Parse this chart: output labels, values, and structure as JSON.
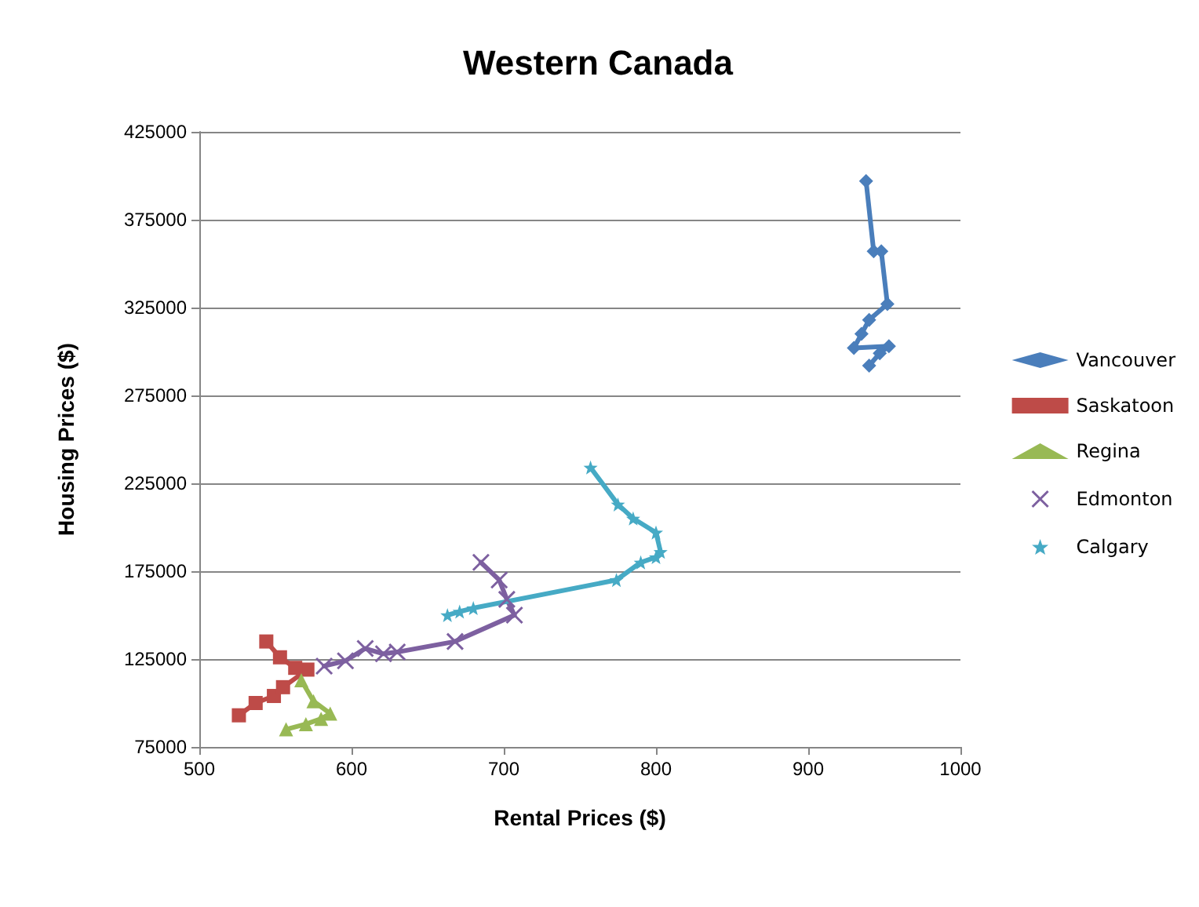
{
  "chart_data": {
    "type": "line",
    "title": "Western Canada",
    "xlabel": "Rental Prices ($)",
    "ylabel": "Housing Prices ($)",
    "xlim": [
      500,
      1000
    ],
    "xticks": [
      500,
      600,
      700,
      800,
      900,
      1000
    ],
    "ylim": [
      75000,
      425000
    ],
    "yticks": [
      75000,
      125000,
      175000,
      225000,
      275000,
      325000,
      375000,
      425000
    ],
    "grid": "y",
    "legend": "right",
    "series": [
      {
        "name": "Vancouver",
        "color": "#4a7ebb",
        "marker": "diamond",
        "x": [
          938,
          943,
          948,
          952,
          940,
          935,
          930,
          953,
          947,
          940
        ],
        "values": [
          397000,
          357000,
          357000,
          327000,
          318000,
          310000,
          302000,
          303000,
          299000,
          292000
        ]
      },
      {
        "name": "Saskatoon",
        "color": "#be4b48",
        "marker": "square",
        "x": [
          526,
          537,
          549,
          555,
          571,
          563,
          553,
          544
        ],
        "values": [
          93000,
          100000,
          104000,
          109000,
          119000,
          120000,
          126000,
          135000
        ]
      },
      {
        "name": "Regina",
        "color": "#98b954",
        "marker": "triangle",
        "x": [
          557,
          570,
          580,
          586,
          575,
          567
        ],
        "values": [
          85000,
          88000,
          91000,
          94000,
          101000,
          113000
        ]
      },
      {
        "name": "Edmonton",
        "color": "#7d60a0",
        "marker": "cross",
        "x": [
          582,
          596,
          609,
          621,
          630,
          668,
          707,
          702,
          697,
          685
        ],
        "values": [
          121000,
          124000,
          131000,
          128000,
          129000,
          135000,
          150000,
          159000,
          170000,
          180000
        ]
      },
      {
        "name": "Calgary",
        "color": "#46aac5",
        "marker": "star",
        "x": [
          663,
          671,
          680,
          774,
          790,
          800,
          803,
          800,
          785,
          775,
          757
        ],
        "values": [
          150000,
          152000,
          154000,
          170000,
          180000,
          183000,
          186000,
          197000,
          205000,
          213000,
          234000
        ]
      }
    ]
  }
}
